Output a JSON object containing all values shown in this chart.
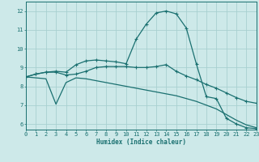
{
  "xlabel": "Humidex (Indice chaleur)",
  "xlim": [
    0,
    23
  ],
  "ylim": [
    5.7,
    12.5
  ],
  "xticks": [
    0,
    1,
    2,
    3,
    4,
    5,
    6,
    7,
    8,
    9,
    10,
    11,
    12,
    13,
    14,
    15,
    16,
    17,
    18,
    19,
    20,
    21,
    22,
    23
  ],
  "yticks": [
    6,
    7,
    8,
    9,
    10,
    11,
    12
  ],
  "background_color": "#cde9e9",
  "grid_color": "#a8d0d0",
  "line_color": "#1a7070",
  "curve1_x": [
    0,
    1,
    2,
    3,
    4,
    5,
    6,
    7,
    8,
    9,
    10,
    11,
    12,
    13,
    14,
    15,
    16,
    17,
    18,
    19,
    20,
    21,
    22,
    23
  ],
  "curve1_y": [
    8.5,
    8.65,
    8.75,
    8.8,
    8.75,
    9.15,
    9.35,
    9.4,
    9.35,
    9.3,
    9.2,
    10.5,
    11.3,
    11.9,
    12.0,
    11.85,
    11.1,
    9.2,
    7.45,
    7.35,
    6.3,
    6.0,
    5.8,
    5.75
  ],
  "curve2_x": [
    0,
    1,
    2,
    3,
    4,
    5,
    6,
    7,
    8,
    9,
    10,
    11,
    12,
    13,
    14,
    15,
    16,
    17,
    18,
    19,
    20,
    21,
    22,
    23
  ],
  "curve2_y": [
    8.5,
    8.65,
    8.75,
    8.75,
    8.6,
    8.65,
    8.8,
    9.0,
    9.05,
    9.05,
    9.05,
    9.0,
    9.0,
    9.05,
    9.15,
    8.8,
    8.55,
    8.35,
    8.1,
    7.9,
    7.65,
    7.4,
    7.2,
    7.1
  ],
  "curve3_x": [
    0,
    1,
    2,
    3,
    4,
    5,
    6,
    7,
    8,
    9,
    10,
    11,
    12,
    13,
    14,
    15,
    16,
    17,
    18,
    19,
    20,
    21,
    22,
    23
  ],
  "curve3_y": [
    8.5,
    8.45,
    8.4,
    7.05,
    8.2,
    8.45,
    8.4,
    8.3,
    8.2,
    8.1,
    8.0,
    7.9,
    7.8,
    7.7,
    7.6,
    7.5,
    7.35,
    7.2,
    7.0,
    6.8,
    6.5,
    6.2,
    5.95,
    5.8
  ]
}
